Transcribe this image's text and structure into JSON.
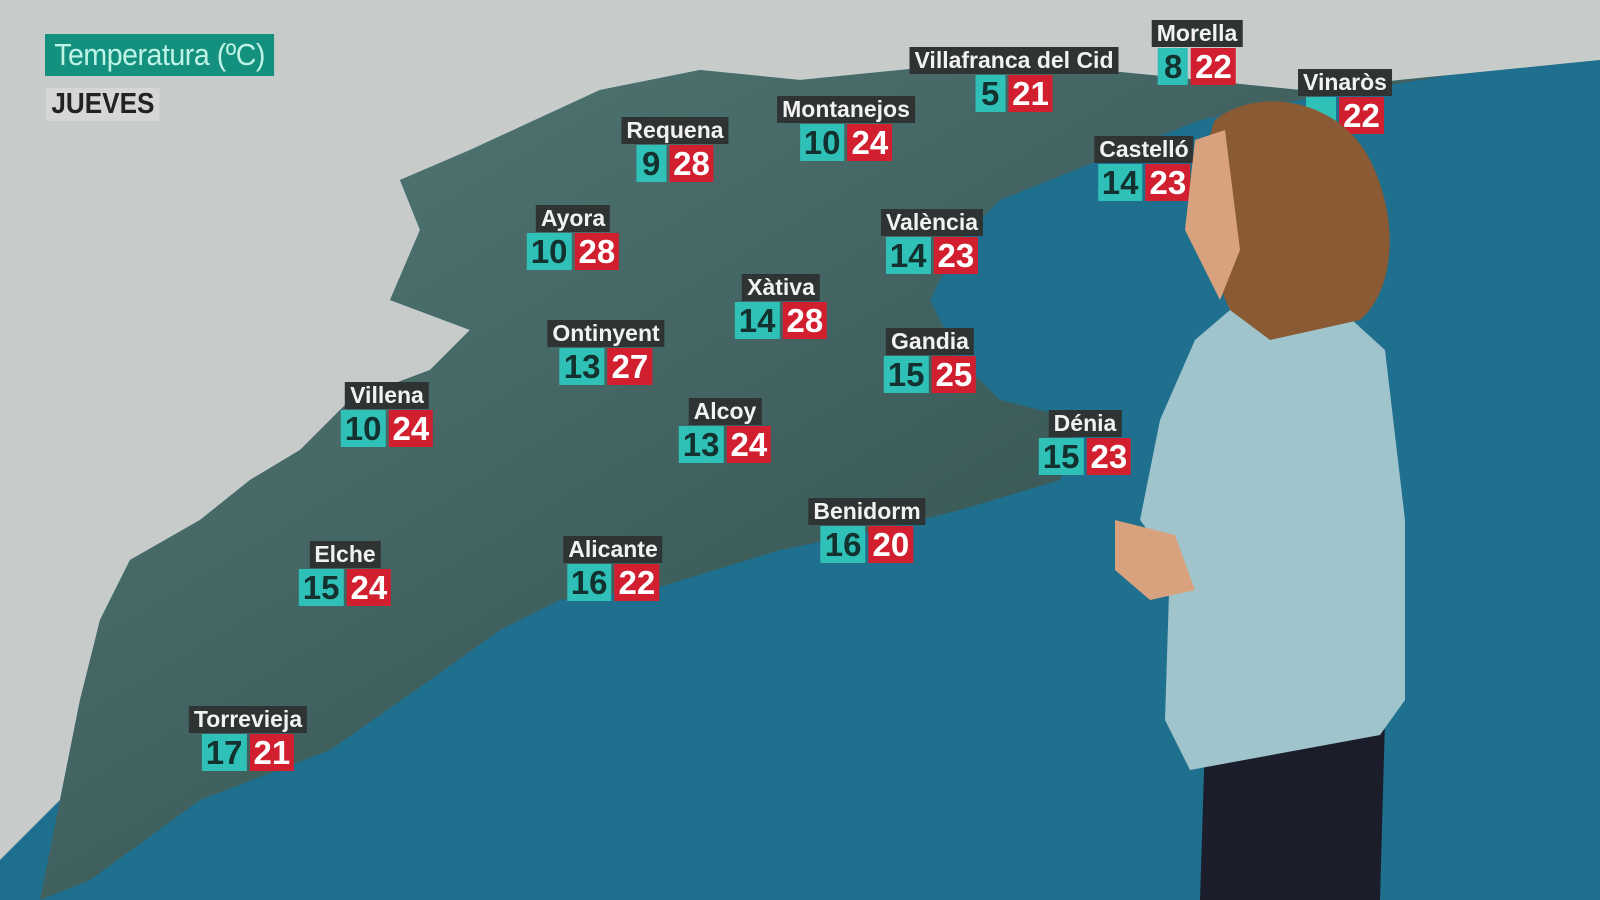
{
  "header": {
    "title": "Temperatura (ºC)",
    "day": "JUEVES"
  },
  "colors": {
    "min_box": "#2fc0b8",
    "max_box": "#d21f30",
    "title_bg": "#13907e",
    "sea": "#1f6f8e",
    "land": "#3d6160"
  },
  "cities": [
    {
      "name": "Requena",
      "min": "9",
      "max": "28"
    },
    {
      "name": "Montanejos",
      "min": "10",
      "max": "24"
    },
    {
      "name": "Villafranca del Cid",
      "min": "5",
      "max": "21"
    },
    {
      "name": "Morella",
      "min": "8",
      "max": "22"
    },
    {
      "name": "Vinaròs",
      "min": "",
      "max": "22"
    },
    {
      "name": "Castelló",
      "min": "14",
      "max": "23"
    },
    {
      "name": "Ayora",
      "min": "10",
      "max": "28"
    },
    {
      "name": "València",
      "min": "14",
      "max": "23"
    },
    {
      "name": "Xàtiva",
      "min": "14",
      "max": "28"
    },
    {
      "name": "Ontinyent",
      "min": "13",
      "max": "27"
    },
    {
      "name": "Gandia",
      "min": "15",
      "max": "25"
    },
    {
      "name": "Villena",
      "min": "10",
      "max": "24"
    },
    {
      "name": "Alcoy",
      "min": "13",
      "max": "24"
    },
    {
      "name": "Dénia",
      "min": "15",
      "max": "23"
    },
    {
      "name": "Benidorm",
      "min": "16",
      "max": "20"
    },
    {
      "name": "Elche",
      "min": "15",
      "max": "24"
    },
    {
      "name": "Alicante",
      "min": "16",
      "max": "22"
    },
    {
      "name": "Torrevieja",
      "min": "17",
      "max": "21"
    }
  ]
}
